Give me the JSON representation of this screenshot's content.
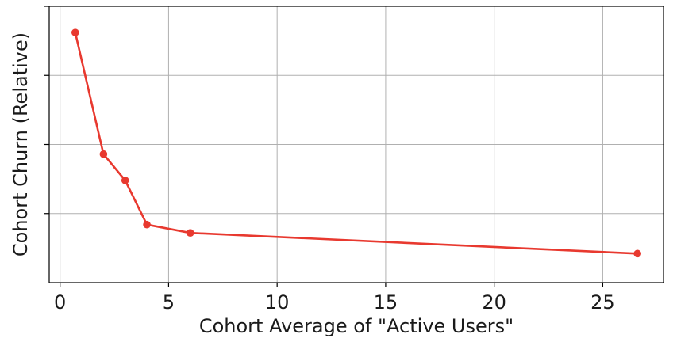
{
  "chart_data": {
    "type": "line",
    "title": "",
    "xlabel": "Cohort Average of  \"Active Users\"",
    "ylabel": "Cohort Churn (Relative)",
    "xlim": [
      -0.5,
      27.8
    ],
    "ylim": [
      0.0,
      1.0
    ],
    "xticks": [
      0,
      5,
      10,
      15,
      20,
      25
    ],
    "xtick_labels": [
      "0",
      "5",
      "10",
      "15",
      "20",
      "25"
    ],
    "yticks": [
      0.25,
      0.5,
      0.75,
      1.0
    ],
    "ytick_labels": [
      "",
      "",
      "",
      ""
    ],
    "grid": true,
    "legend": "none",
    "series": [
      {
        "color": "#e8392f",
        "x": [
          0.7,
          2.0,
          3.0,
          4.0,
          6.0,
          26.6
        ],
        "y": [
          0.905,
          0.465,
          0.37,
          0.21,
          0.18,
          0.105
        ]
      }
    ]
  }
}
